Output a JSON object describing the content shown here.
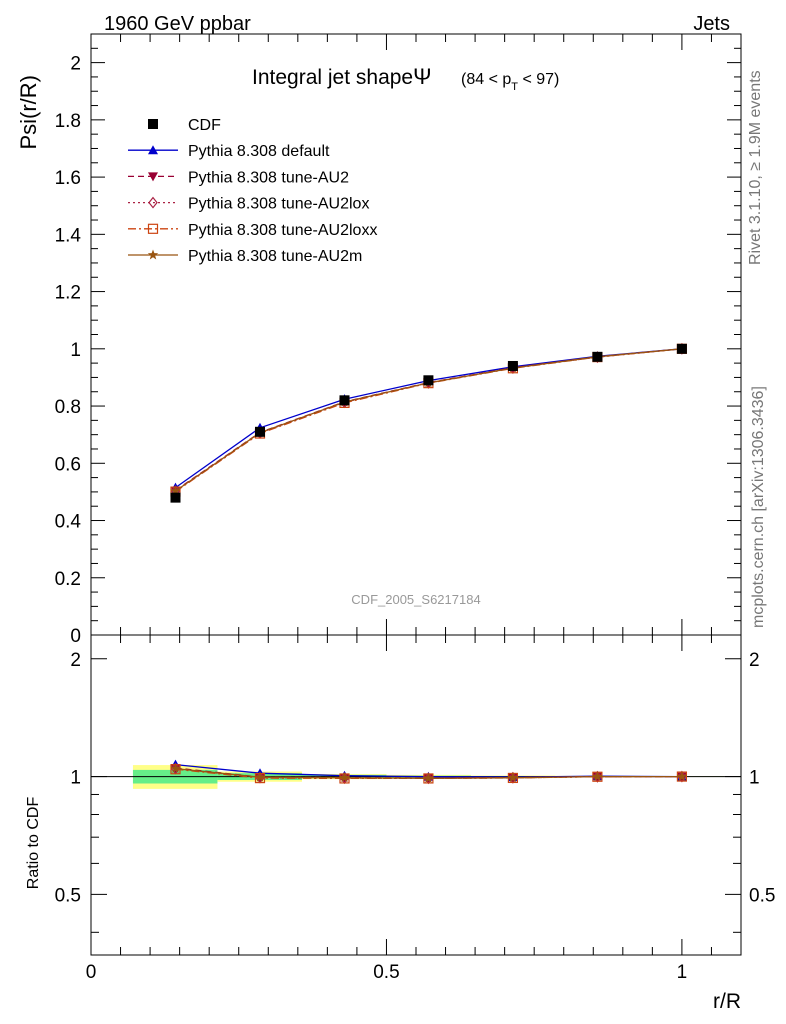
{
  "header": {
    "left": "1960 GeV ppbar",
    "right": "Jets"
  },
  "side_labels": {
    "rivet": "Rivet 3.1.10, ≥ 1.9M events",
    "mcplots": "mcplots.cern.ch [arXiv:1306.3436]"
  },
  "chart_data": [
    {
      "type": "line",
      "title_main": "Integral jet shape",
      "title_symbol": "Ψ",
      "title_range_pre": "(84 < p",
      "title_range_sub": "T",
      "title_range_post": " < 97)",
      "ylabel": "Psi(r/R)",
      "xlabel": "",
      "xlim": [
        0,
        1.1
      ],
      "ylim": [
        0,
        2.1
      ],
      "y_ticks": [
        "0",
        "0.2",
        "0.4",
        "0.6",
        "0.8",
        "1",
        "1.2",
        "1.4",
        "1.6",
        "1.8",
        "2"
      ],
      "watermark": "CDF_2005_S6217184",
      "legend_position": "top-left",
      "x": [
        0.143,
        0.286,
        0.429,
        0.571,
        0.714,
        0.857,
        1.0
      ],
      "x_edges": [
        0.071,
        0.214,
        0.357,
        0.5,
        0.643,
        0.786,
        0.929,
        1.071
      ],
      "series": [
        {
          "name": "CDF",
          "color": "#000000",
          "marker": "square",
          "dash": "none",
          "values": [
            0.48,
            0.71,
            0.82,
            0.89,
            0.94,
            0.972,
            1.0
          ]
        },
        {
          "name": "Pythia 8.308 default",
          "color": "#0000cc",
          "marker": "triangle-up",
          "dash": "solid",
          "values": [
            0.515,
            0.724,
            0.824,
            0.889,
            0.937,
            0.974,
            1.0
          ]
        },
        {
          "name": "Pythia 8.308 tune-AU2",
          "color": "#990033",
          "marker": "triangle-down",
          "dash": "dashed",
          "values": [
            0.505,
            0.708,
            0.815,
            0.882,
            0.934,
            0.972,
            1.0
          ]
        },
        {
          "name": "Pythia 8.308 tune-AU2lox",
          "color": "#aa2244",
          "marker": "diamond-open",
          "dash": "dotted",
          "values": [
            0.503,
            0.706,
            0.813,
            0.881,
            0.933,
            0.971,
            1.0
          ]
        },
        {
          "name": "Pythia 8.308 tune-AU2loxx",
          "color": "#cc4411",
          "marker": "square-open",
          "dash": "dashdot",
          "values": [
            0.501,
            0.704,
            0.811,
            0.88,
            0.932,
            0.971,
            1.0
          ]
        },
        {
          "name": "Pythia 8.308 tune-AU2m",
          "color": "#995511",
          "marker": "star",
          "dash": "solid",
          "values": [
            0.503,
            0.707,
            0.814,
            0.881,
            0.933,
            0.972,
            1.0
          ]
        }
      ]
    },
    {
      "type": "line",
      "ylabel": "Ratio to CDF",
      "xlabel": "r/R",
      "xlim": [
        0,
        1.1
      ],
      "ylim": [
        0.35,
        2.3
      ],
      "y_scale": "log",
      "x_ticks": [
        "0",
        "0.5",
        "1"
      ],
      "y_ticks": [
        "0.5",
        "1",
        "2"
      ],
      "band_inner_color": "#66ee88",
      "band_outer_color": "#ffff88",
      "x": [
        0.143,
        0.286,
        0.429,
        0.571,
        0.714,
        0.857,
        1.0
      ],
      "bands": [
        {
          "inner": [
            0.96,
            1.04
          ],
          "outer": [
            0.93,
            1.07
          ]
        },
        {
          "inner": [
            0.98,
            1.02
          ],
          "outer": [
            0.97,
            1.03
          ]
        },
        {
          "inner": [
            0.99,
            1.01
          ],
          "outer": [
            0.985,
            1.015
          ]
        },
        {
          "inner": [
            0.995,
            1.005
          ],
          "outer": [
            0.99,
            1.01
          ]
        },
        {
          "inner": [
            0.997,
            1.003
          ],
          "outer": [
            0.994,
            1.006
          ]
        },
        {
          "inner": [
            0.998,
            1.002
          ],
          "outer": [
            0.996,
            1.004
          ]
        },
        {
          "inner": [
            0.999,
            1.001
          ],
          "outer": [
            0.998,
            1.002
          ]
        }
      ],
      "series": [
        {
          "name": "Pythia 8.308 default",
          "values": [
            1.073,
            1.02,
            1.005,
            0.999,
            0.997,
            1.002,
            1.0
          ]
        },
        {
          "name": "Pythia 8.308 tune-AU2",
          "values": [
            1.052,
            0.997,
            0.994,
            0.991,
            0.994,
            1.0,
            1.0
          ]
        },
        {
          "name": "Pythia 8.308 tune-AU2lox",
          "values": [
            1.048,
            0.994,
            0.991,
            0.99,
            0.993,
            0.999,
            1.0
          ]
        },
        {
          "name": "Pythia 8.308 tune-AU2loxx",
          "values": [
            1.044,
            0.991,
            0.989,
            0.989,
            0.992,
            0.999,
            1.0
          ]
        },
        {
          "name": "Pythia 8.308 tune-AU2m",
          "values": [
            1.048,
            0.996,
            0.993,
            0.99,
            0.993,
            1.0,
            1.0
          ]
        }
      ]
    }
  ]
}
